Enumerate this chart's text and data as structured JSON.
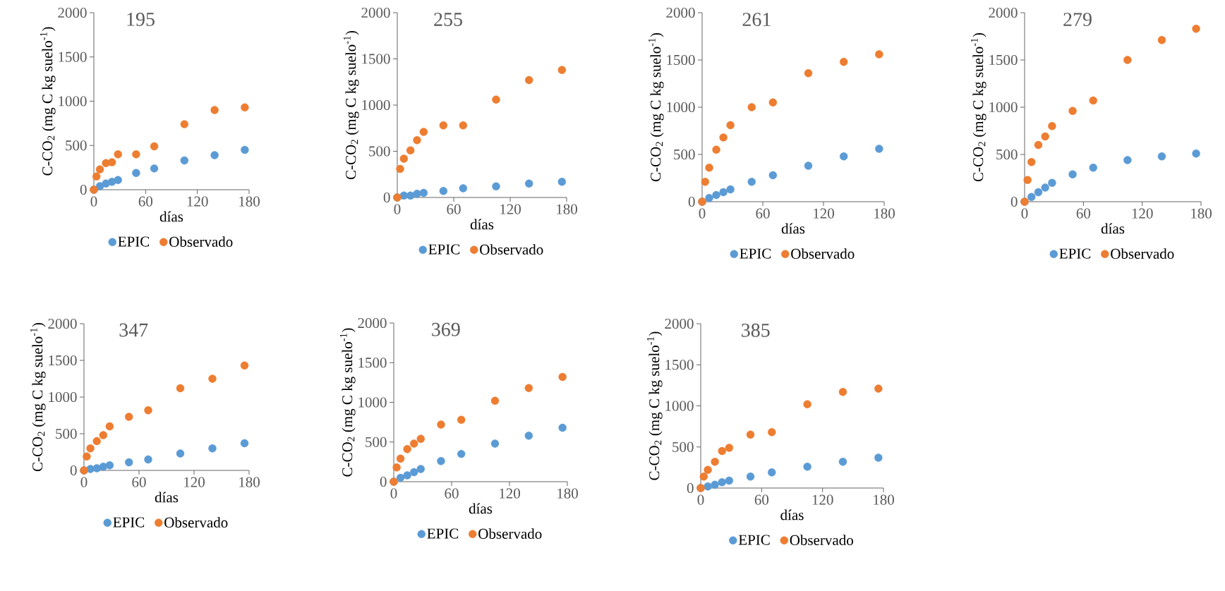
{
  "chart_data": [
    {
      "type": "scatter",
      "title": "195",
      "xlabel": "días",
      "ylabel": "C-CO$_{2}$ (mg C kg suelo$^{-1}$)",
      "xlim": [
        0,
        180
      ],
      "ylim": [
        0,
        2000
      ],
      "xticks": [
        0,
        60,
        120,
        180
      ],
      "yticks": [
        0,
        500,
        1000,
        1500,
        2000
      ],
      "legend": "bottom",
      "marker": "circle",
      "series": [
        {
          "name": "EPIC",
          "color": "#5b9bd5",
          "x": [
            0,
            7,
            14,
            21,
            28,
            49,
            70,
            105,
            140,
            175
          ],
          "values": [
            0,
            40,
            70,
            90,
            110,
            190,
            240,
            330,
            390,
            450
          ]
        },
        {
          "name": "Observado",
          "color": "#ed7d31",
          "x": [
            0,
            3,
            7,
            14,
            21,
            28,
            49,
            70,
            105,
            140,
            175
          ],
          "values": [
            0,
            150,
            230,
            300,
            310,
            400,
            400,
            490,
            740,
            900,
            930
          ]
        }
      ]
    },
    {
      "type": "scatter",
      "title": "255",
      "xlabel": "días",
      "ylabel": "C-CO$_{2}$ (mg C kg suelo$^{-1}$)",
      "xlim": [
        0,
        180
      ],
      "ylim": [
        0,
        2000
      ],
      "xticks": [
        0,
        60,
        120,
        180
      ],
      "yticks": [
        0,
        500,
        1000,
        1500,
        2000
      ],
      "legend": "bottom",
      "marker": "circle",
      "series": [
        {
          "name": "EPIC",
          "color": "#5b9bd5",
          "x": [
            0,
            7,
            14,
            21,
            28,
            49,
            70,
            105,
            140,
            175
          ],
          "values": [
            0,
            20,
            20,
            40,
            50,
            70,
            100,
            120,
            150,
            170
          ]
        },
        {
          "name": "Observado",
          "color": "#ed7d31",
          "x": [
            0,
            3,
            7,
            14,
            21,
            28,
            49,
            70,
            105,
            140,
            175
          ],
          "values": [
            0,
            310,
            420,
            510,
            620,
            710,
            780,
            780,
            1060,
            1270,
            1380
          ]
        }
      ]
    },
    {
      "type": "scatter",
      "title": "261",
      "xlabel": "días",
      "ylabel": "C-CO$_{2}$ (mg C kg suelo$^{-1}$)",
      "xlim": [
        0,
        180
      ],
      "ylim": [
        0,
        2000
      ],
      "xticks": [
        0,
        60,
        120,
        180
      ],
      "yticks": [
        0,
        500,
        1000,
        1500,
        2000
      ],
      "legend": "bottom",
      "marker": "circle",
      "series": [
        {
          "name": "EPIC",
          "color": "#5b9bd5",
          "x": [
            0,
            7,
            14,
            21,
            28,
            49,
            70,
            105,
            140,
            175
          ],
          "values": [
            0,
            40,
            70,
            100,
            130,
            210,
            280,
            380,
            480,
            560
          ]
        },
        {
          "name": "Observado",
          "color": "#ed7d31",
          "x": [
            0,
            3,
            7,
            14,
            21,
            28,
            49,
            70,
            105,
            140,
            175
          ],
          "values": [
            0,
            210,
            360,
            550,
            680,
            810,
            1000,
            1050,
            1360,
            1480,
            1560
          ]
        }
      ]
    },
    {
      "type": "scatter",
      "title": "279",
      "xlabel": "días",
      "ylabel": "C-CO$_{2}$ (mg C kg suelo$^{-1}$)",
      "xlim": [
        0,
        180
      ],
      "ylim": [
        0,
        2000
      ],
      "xticks": [
        0,
        60,
        120,
        180
      ],
      "yticks": [
        0,
        500,
        1000,
        1500,
        2000
      ],
      "legend": "bottom",
      "marker": "circle",
      "series": [
        {
          "name": "EPIC",
          "color": "#5b9bd5",
          "x": [
            0,
            7,
            14,
            21,
            28,
            49,
            70,
            105,
            140,
            175
          ],
          "values": [
            0,
            50,
            100,
            150,
            200,
            290,
            360,
            440,
            480,
            510
          ]
        },
        {
          "name": "Observado",
          "color": "#ed7d31",
          "x": [
            0,
            3,
            7,
            14,
            21,
            28,
            49,
            70,
            105,
            140,
            175
          ],
          "values": [
            0,
            230,
            420,
            600,
            690,
            800,
            960,
            1070,
            1500,
            1710,
            1830
          ]
        }
      ]
    },
    {
      "type": "scatter",
      "title": "347",
      "xlabel": "días",
      "ylabel": "C-CO$_{2}$ (mg C kg suelo$^{-1}$)",
      "xlim": [
        0,
        180
      ],
      "ylim": [
        0,
        2000
      ],
      "xticks": [
        0,
        60,
        120,
        180
      ],
      "yticks": [
        0,
        500,
        1000,
        1500,
        2000
      ],
      "legend": "bottom",
      "marker": "circle",
      "series": [
        {
          "name": "EPIC",
          "color": "#5b9bd5",
          "x": [
            0,
            7,
            14,
            21,
            28,
            49,
            70,
            105,
            140,
            175
          ],
          "values": [
            0,
            20,
            30,
            50,
            70,
            110,
            150,
            230,
            300,
            370
          ]
        },
        {
          "name": "Observado",
          "color": "#ed7d31",
          "x": [
            0,
            3,
            7,
            14,
            21,
            28,
            49,
            70,
            105,
            140,
            175
          ],
          "values": [
            0,
            190,
            300,
            400,
            480,
            600,
            730,
            820,
            1120,
            1250,
            1430
          ]
        }
      ]
    },
    {
      "type": "scatter",
      "title": "369",
      "xlabel": "días",
      "ylabel": "C-CO$_{2}$ (mg C kg suelo$^{-1}$)",
      "xlim": [
        0,
        180
      ],
      "ylim": [
        0,
        2000
      ],
      "xticks": [
        0,
        60,
        120,
        180
      ],
      "yticks": [
        0,
        500,
        1000,
        1500,
        2000
      ],
      "legend": "bottom",
      "marker": "circle",
      "series": [
        {
          "name": "EPIC",
          "color": "#5b9bd5",
          "x": [
            0,
            7,
            14,
            21,
            28,
            49,
            70,
            105,
            140,
            175
          ],
          "values": [
            0,
            50,
            80,
            120,
            160,
            260,
            350,
            480,
            580,
            680
          ]
        },
        {
          "name": "Observado",
          "color": "#ed7d31",
          "x": [
            0,
            3,
            7,
            14,
            21,
            28,
            49,
            70,
            105,
            140,
            175
          ],
          "values": [
            0,
            180,
            290,
            410,
            480,
            540,
            720,
            780,
            1020,
            1180,
            1320
          ]
        }
      ]
    },
    {
      "type": "scatter",
      "title": "385",
      "xlabel": "días",
      "ylabel": "C-CO$_{2}$ (mg C kg suelo$^{-1}$)",
      "xlim": [
        0,
        180
      ],
      "ylim": [
        0,
        2000
      ],
      "xticks": [
        0,
        60,
        120,
        180
      ],
      "yticks": [
        0,
        500,
        1000,
        1500,
        2000
      ],
      "legend": "bottom",
      "marker": "circle",
      "series": [
        {
          "name": "EPIC",
          "color": "#5b9bd5",
          "x": [
            0,
            7,
            14,
            21,
            28,
            49,
            70,
            105,
            140,
            175
          ],
          "values": [
            0,
            20,
            40,
            70,
            90,
            140,
            190,
            260,
            320,
            370
          ]
        },
        {
          "name": "Observado",
          "color": "#ed7d31",
          "x": [
            0,
            3,
            7,
            14,
            21,
            28,
            49,
            70,
            105,
            140,
            175
          ],
          "values": [
            0,
            140,
            220,
            320,
            450,
            490,
            650,
            680,
            1020,
            1170,
            1210
          ]
        }
      ]
    }
  ]
}
